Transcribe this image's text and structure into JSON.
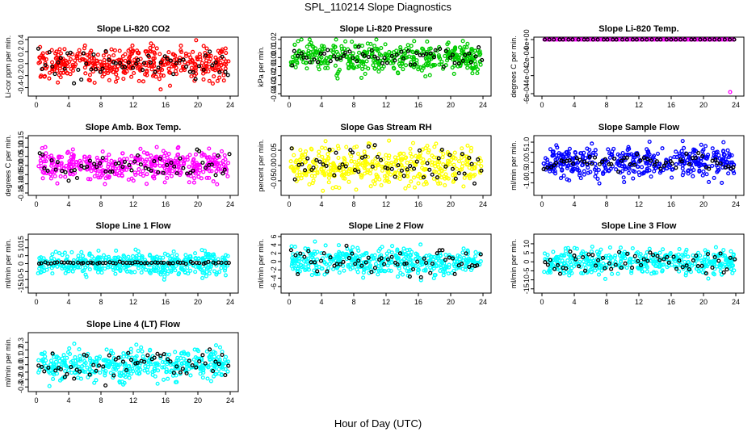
{
  "figure": {
    "title": "SPL_110214  Slope Diagnostics",
    "xlabel": "Hour of Day (UTC)"
  },
  "chart_data": [
    {
      "type": "scatter",
      "title": "Slope Li-820 CO2",
      "ylabel": "Li-cor ppm per min.",
      "color": "#ff0000",
      "xlim": [
        0,
        24
      ],
      "ylim": [
        -0.5,
        0.4
      ],
      "xticks": [
        0,
        4,
        8,
        12,
        16,
        20,
        24
      ],
      "yticks": [
        -0.4,
        -0.2,
        0.0,
        0.2,
        0.4
      ],
      "ytick_labels": [
        "-0.4",
        "-0.2",
        "0.0",
        "0.2",
        "0.4"
      ],
      "spread": 0.14,
      "black_spread": 0.12,
      "center": 0.0,
      "series": [
        {
          "name": "color points",
          "n": 420
        },
        {
          "name": "black points",
          "n": 60
        }
      ]
    },
    {
      "type": "scatter",
      "title": "Slope Li-820 Pressure",
      "ylabel": "kPa per min.",
      "color": "#00cc00",
      "xlim": [
        0,
        24
      ],
      "ylim": [
        -0.04,
        0.02
      ],
      "xticks": [
        0,
        4,
        8,
        12,
        16,
        20,
        24
      ],
      "yticks": [
        -0.04,
        -0.03,
        -0.02,
        -0.01,
        0.0,
        0.01,
        0.02
      ],
      "ytick_labels": [
        "-0.04",
        "-0.03",
        "-0.02",
        "-0.01",
        "0.00",
        "0.01",
        "0.02"
      ],
      "spread": 0.008,
      "black_spread": 0.006,
      "center": 0.0,
      "series": [
        {
          "name": "color points",
          "n": 420
        },
        {
          "name": "black points",
          "n": 60
        }
      ]
    },
    {
      "type": "scatter",
      "title": "Slope Li-820 Temp.",
      "ylabel": "degrees C per min.",
      "color": "#ff00ff",
      "xlim": [
        0,
        24
      ],
      "ylim": [
        -0.0006,
        0.0
      ],
      "xticks": [
        0,
        4,
        8,
        12,
        16,
        20,
        24
      ],
      "yticks": [
        -0.0006,
        -0.0004,
        -0.0002,
        0.0
      ],
      "ytick_labels": [
        "-6e-04",
        "-4e-04",
        "-2e-04",
        "0e+00"
      ],
      "spread": 0.0,
      "black_spread": 0.0,
      "center": 0.0,
      "series": [
        {
          "name": "color points",
          "n": 120
        },
        {
          "name": "black points",
          "n": 40
        }
      ]
    },
    {
      "type": "scatter",
      "title": "Slope Amb. Box Temp.",
      "ylabel": "degrees C per min.",
      "color": "#ff00ff",
      "xlim": [
        0,
        24
      ],
      "ylim": [
        -0.15,
        0.15
      ],
      "xticks": [
        0,
        4,
        8,
        12,
        16,
        20,
        24
      ],
      "yticks": [
        -0.15,
        -0.1,
        -0.05,
        0.0,
        0.05,
        0.1,
        0.15
      ],
      "ytick_labels": [
        "-0.15",
        "-0.10",
        "-0.05",
        "0.00",
        "0.05",
        "0.10",
        "0.15"
      ],
      "spread": 0.04,
      "black_spread": 0.035,
      "center": 0.0,
      "series": [
        {
          "name": "color points",
          "n": 420
        },
        {
          "name": "black points",
          "n": 60
        }
      ]
    },
    {
      "type": "scatter",
      "title": "Slope Gas Stream RH",
      "ylabel": "percent per min.",
      "color": "#ffff00",
      "xlim": [
        0,
        24
      ],
      "ylim": [
        -0.09,
        0.09
      ],
      "xticks": [
        0,
        4,
        8,
        12,
        16,
        20,
        24
      ],
      "yticks": [
        -0.05,
        0.0,
        0.05
      ],
      "ytick_labels": [
        "-0.05",
        "0.00",
        "0.05"
      ],
      "spread": 0.03,
      "black_spread": 0.03,
      "center": 0.0,
      "series": [
        {
          "name": "color points",
          "n": 420
        },
        {
          "name": "black points",
          "n": 60
        }
      ]
    },
    {
      "type": "scatter",
      "title": "Slope Sample Flow",
      "ylabel": "ml/min per min.",
      "color": "#0000ff",
      "xlim": [
        0,
        24
      ],
      "ylim": [
        -1.5,
        1.2
      ],
      "xticks": [
        0,
        4,
        8,
        12,
        16,
        20,
        24
      ],
      "yticks": [
        -1.0,
        -0.5,
        0.0,
        0.5,
        1.0
      ],
      "ytick_labels": [
        "-1.0",
        "-0.5",
        "0.0",
        "0.5",
        "1.0"
      ],
      "spread": 0.38,
      "black_spread": 0.2,
      "center": 0.0,
      "series": [
        {
          "name": "color points",
          "n": 420
        },
        {
          "name": "black points",
          "n": 60
        }
      ]
    },
    {
      "type": "scatter",
      "title": "Slope Line 1 Flow",
      "ylabel": "ml/min per min.",
      "color": "#00ffff",
      "xlim": [
        0,
        24
      ],
      "ylim": [
        -17,
        17
      ],
      "xticks": [
        0,
        4,
        8,
        12,
        16,
        20,
        24
      ],
      "yticks": [
        -15,
        -10,
        -5,
        0,
        5,
        10,
        15
      ],
      "ytick_labels": [
        "-15",
        "-10",
        "-5",
        "0",
        "5",
        "10",
        "15"
      ],
      "spread": 3.5,
      "black_spread": 0.3,
      "center": 0.5,
      "series": [
        {
          "name": "color points",
          "n": 420
        },
        {
          "name": "black points",
          "n": 60
        }
      ]
    },
    {
      "type": "scatter",
      "title": "Slope Line 2 Flow",
      "ylabel": "ml/min per min.",
      "color": "#00ffff",
      "xlim": [
        0,
        24
      ],
      "ylim": [
        -7,
        6
      ],
      "xticks": [
        0,
        4,
        8,
        12,
        16,
        20,
        24
      ],
      "yticks": [
        -6,
        -4,
        -2,
        0,
        2,
        4,
        6
      ],
      "ytick_labels": [
        "-6",
        "-4",
        "-2",
        "0",
        "2",
        "4",
        "6"
      ],
      "spread": 1.6,
      "black_spread": 1.6,
      "center": 0.0,
      "series": [
        {
          "name": "color points",
          "n": 420
        },
        {
          "name": "black points",
          "n": 60
        }
      ]
    },
    {
      "type": "scatter",
      "title": "Slope Line 3 Flow",
      "ylabel": "ml/min per min.",
      "color": "#00ffff",
      "xlim": [
        0,
        24
      ],
      "ylim": [
        -16,
        14
      ],
      "xticks": [
        0,
        4,
        8,
        12,
        16,
        20,
        24
      ],
      "yticks": [
        -15,
        -10,
        -5,
        0,
        5,
        10
      ],
      "ytick_labels": [
        "-15",
        "-10",
        "-5",
        "0",
        "5",
        "10"
      ],
      "spread": 3.5,
      "black_spread": 3.0,
      "center": 0.0,
      "series": [
        {
          "name": "color points",
          "n": 420
        },
        {
          "name": "black points",
          "n": 60
        }
      ]
    },
    {
      "type": "scatter",
      "title": "Slope Line 4 (LT) Flow",
      "ylabel": "ml/min per min.",
      "color": "#00ffff",
      "xlim": [
        0,
        24
      ],
      "ylim": [
        -0.33,
        0.4
      ],
      "xticks": [
        0,
        4,
        8,
        12,
        16,
        20,
        24
      ],
      "yticks": [
        -0.3,
        -0.2,
        -0.1,
        0.0,
        0.1,
        0.2,
        0.3
      ],
      "ytick_labels": [
        "-0.3",
        "-0.2",
        "-0.1",
        "0.0",
        "0.1",
        "0.2",
        "0.3"
      ],
      "spread": 0.1,
      "black_spread": 0.1,
      "center": 0.0,
      "series": [
        {
          "name": "color points",
          "n": 420
        },
        {
          "name": "black points",
          "n": 60
        }
      ]
    }
  ]
}
